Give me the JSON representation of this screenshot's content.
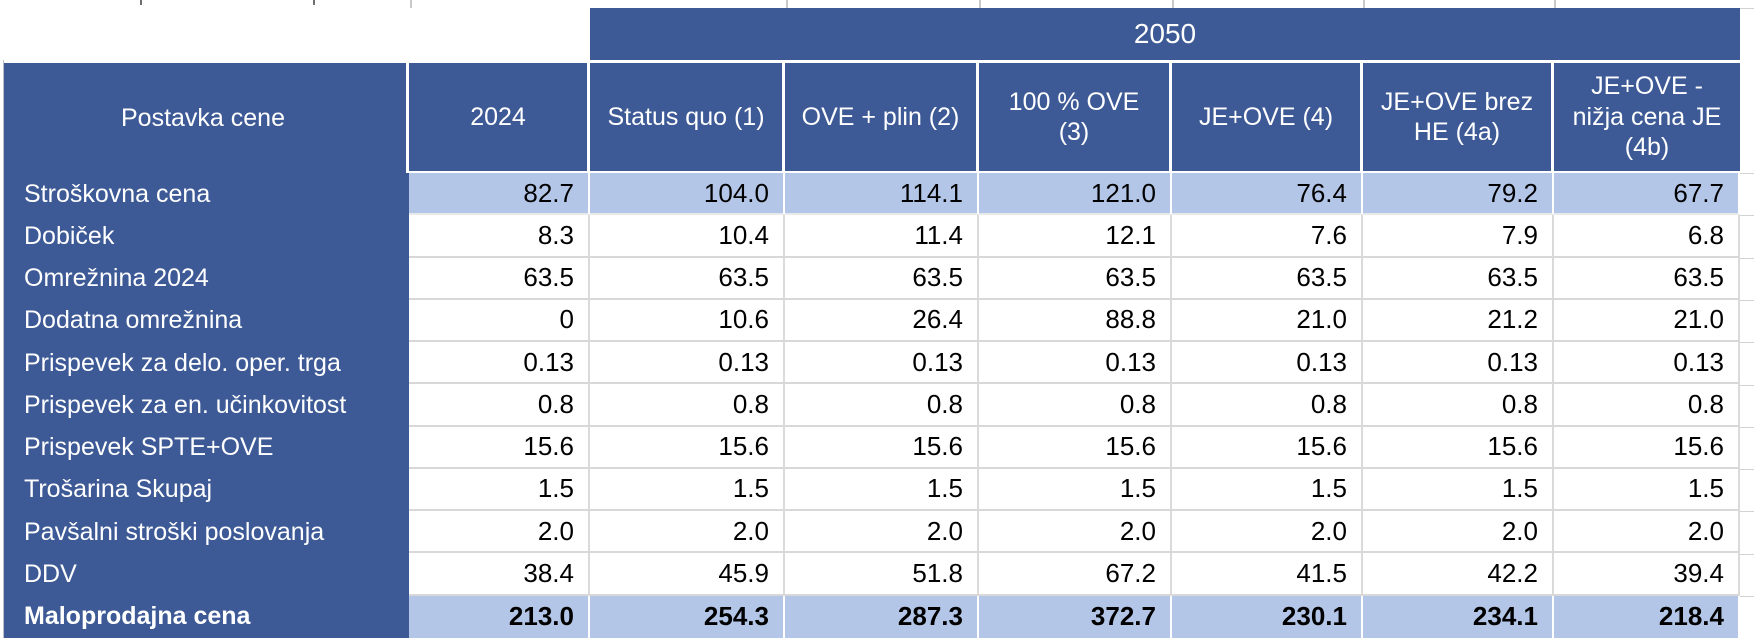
{
  "banner": {
    "label": "2050"
  },
  "table": {
    "header": {
      "row_label_column": "Postavka cene",
      "columns": [
        "2024",
        "Status quo (1)",
        "OVE + plin (2)",
        "100 % OVE\n(3)",
        "JE+OVE (4)",
        "JE+OVE brez\nHE (4a)",
        "JE+OVE -\nnižja cena JE\n(4b)"
      ]
    },
    "rows": [
      {
        "label": "Stroškovna cena",
        "values": [
          "82.7",
          "104.0",
          "114.1",
          "121.0",
          "76.4",
          "79.2",
          "67.7"
        ],
        "highlight": true,
        "bold": false
      },
      {
        "label": "Dobiček",
        "values": [
          "8.3",
          "10.4",
          "11.4",
          "12.1",
          "7.6",
          "7.9",
          "6.8"
        ],
        "highlight": false,
        "bold": false
      },
      {
        "label": "Omrežnina 2024",
        "values": [
          "63.5",
          "63.5",
          "63.5",
          "63.5",
          "63.5",
          "63.5",
          "63.5"
        ],
        "highlight": false,
        "bold": false
      },
      {
        "label": "Dodatna omrežnina",
        "values": [
          "0",
          "10.6",
          "26.4",
          "88.8",
          "21.0",
          "21.2",
          "21.0"
        ],
        "highlight": false,
        "bold": false
      },
      {
        "label": "Prispevek za delo. oper. trga",
        "values": [
          "0.13",
          "0.13",
          "0.13",
          "0.13",
          "0.13",
          "0.13",
          "0.13"
        ],
        "highlight": false,
        "bold": false
      },
      {
        "label": "Prispevek za en. učinkovitost",
        "values": [
          "0.8",
          "0.8",
          "0.8",
          "0.8",
          "0.8",
          "0.8",
          "0.8"
        ],
        "highlight": false,
        "bold": false
      },
      {
        "label": "Prispevek SPTE+OVE",
        "values": [
          "15.6",
          "15.6",
          "15.6",
          "15.6",
          "15.6",
          "15.6",
          "15.6"
        ],
        "highlight": false,
        "bold": false
      },
      {
        "label": "Trošarina Skupaj",
        "values": [
          "1.5",
          "1.5",
          "1.5",
          "1.5",
          "1.5",
          "1.5",
          "1.5"
        ],
        "highlight": false,
        "bold": false
      },
      {
        "label": "Pavšalni stroški poslovanja",
        "values": [
          "2.0",
          "2.0",
          "2.0",
          "2.0",
          "2.0",
          "2.0",
          "2.0"
        ],
        "highlight": false,
        "bold": false
      },
      {
        "label": "DDV",
        "values": [
          "38.4",
          "45.9",
          "51.8",
          "67.2",
          "41.5",
          "42.2",
          "39.4"
        ],
        "highlight": false,
        "bold": false
      },
      {
        "label": "Maloprodajna cena",
        "values": [
          "213.0",
          "254.3",
          "287.3",
          "372.7",
          "230.1",
          "234.1",
          "218.4"
        ],
        "highlight": true,
        "bold": true
      }
    ]
  },
  "colors": {
    "header_bg": "#3d5a96",
    "highlight_bg": "#b4c6e7",
    "grid_line": "#d8d8d8",
    "header_text": "#ffffff",
    "value_text": "#000000"
  }
}
